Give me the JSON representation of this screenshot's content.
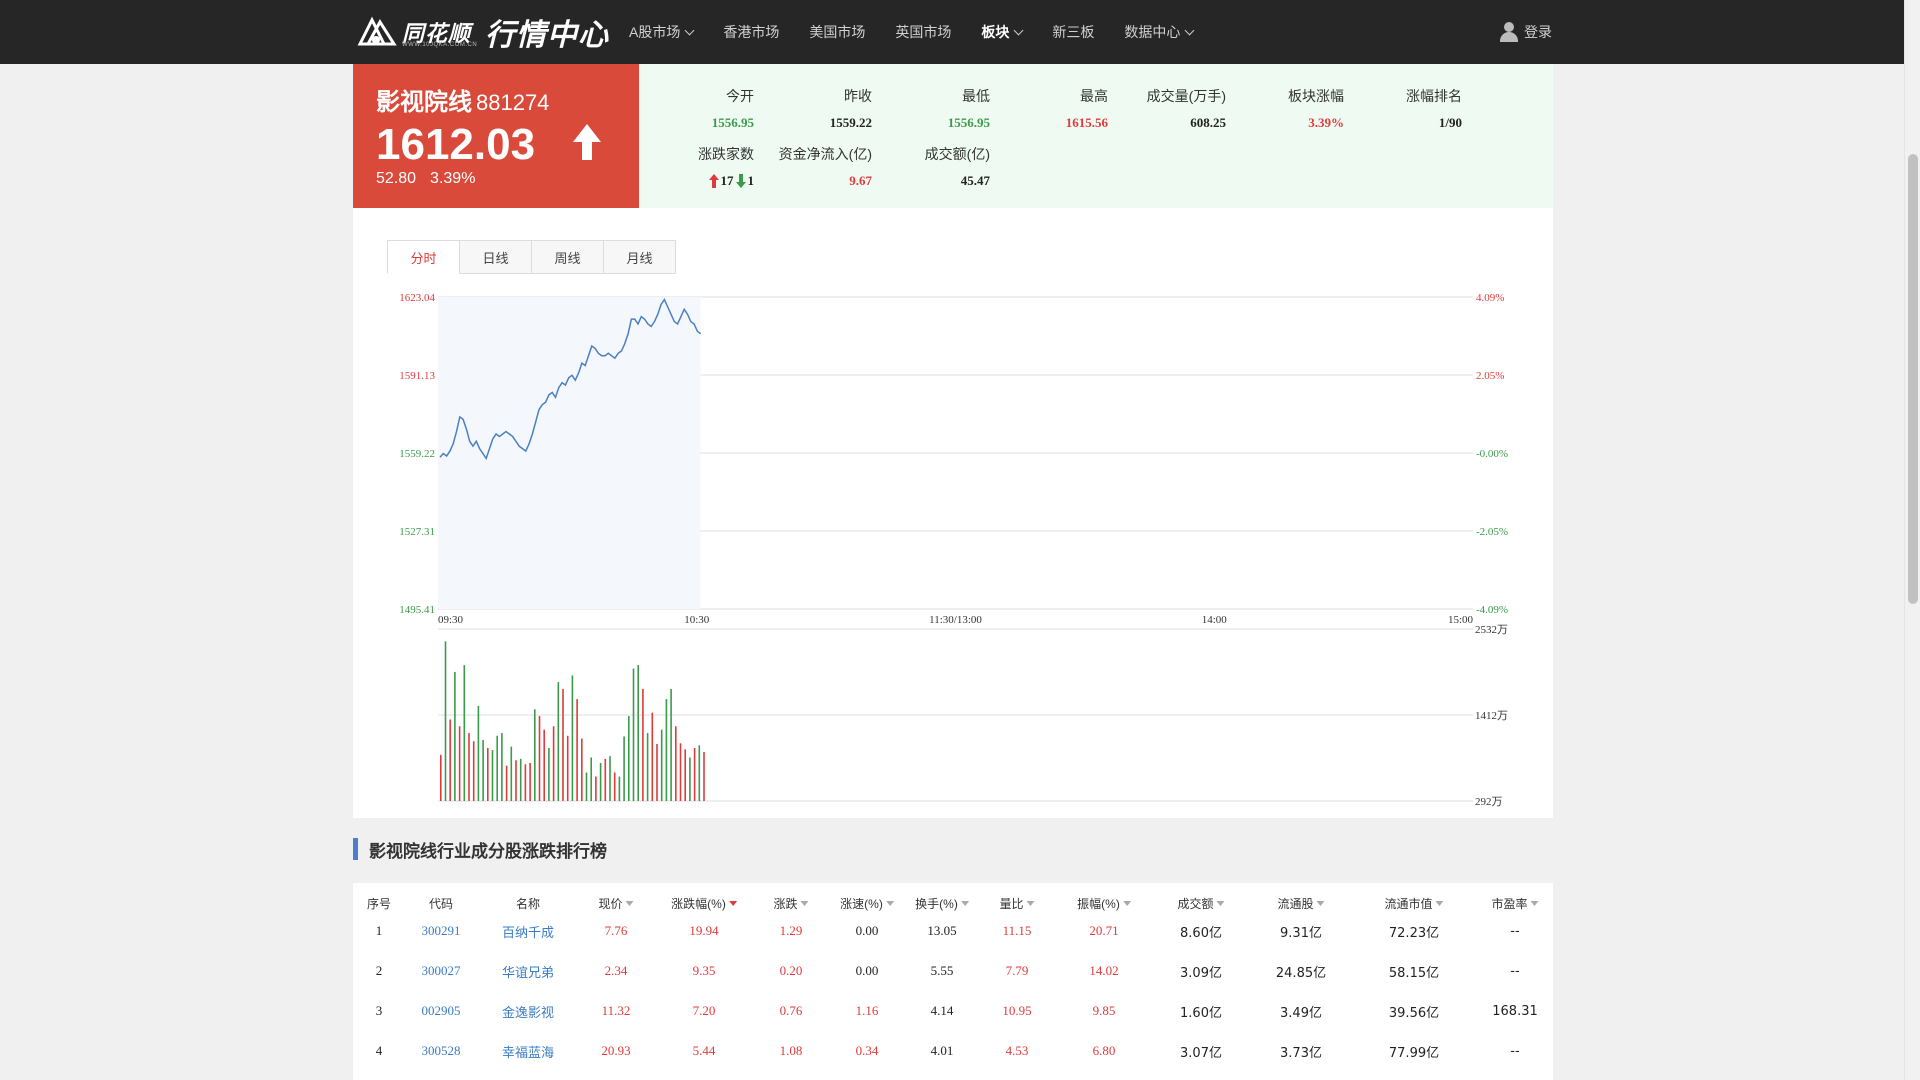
{
  "nav": {
    "logo_text": "同花顺",
    "logo_sub": "WWW.10JQKA.COM.CN",
    "logo_title": "行情中心",
    "items": [
      {
        "label": "A股市场",
        "dropdown": true,
        "active": false
      },
      {
        "label": "香港市场",
        "dropdown": false,
        "active": false
      },
      {
        "label": "美国市场",
        "dropdown": false,
        "active": false
      },
      {
        "label": "英国市场",
        "dropdown": false,
        "active": false
      },
      {
        "label": "板块",
        "dropdown": true,
        "active": true
      },
      {
        "label": "新三板",
        "dropdown": false,
        "active": false
      },
      {
        "label": "数据中心",
        "dropdown": true,
        "active": false
      }
    ],
    "login_label": "登录"
  },
  "quote": {
    "name": "影视院线",
    "code": "881274",
    "price": "1612.03",
    "change": "52.80",
    "change_pct": "3.39%",
    "stats": [
      {
        "label": "今开",
        "value": "1556.95",
        "color": "green"
      },
      {
        "label": "昨收",
        "value": "1559.22",
        "color": "dark"
      },
      {
        "label": "最低",
        "value": "1556.95",
        "color": "green"
      },
      {
        "label": "最高",
        "value": "1615.56",
        "color": "red"
      },
      {
        "label": "成交量(万手)",
        "value": "608.25",
        "color": "dark"
      },
      {
        "label": "板块涨幅",
        "value": "3.39%",
        "color": "red"
      },
      {
        "label": "涨幅排名",
        "value": "1/90",
        "color": "dark"
      },
      {
        "label": "涨跌家数",
        "up": "17",
        "down": "1"
      },
      {
        "label": "资金净流入(亿)",
        "value": "9.67",
        "color": "red"
      },
      {
        "label": "成交额(亿)",
        "value": "45.47",
        "color": "dark"
      }
    ]
  },
  "tabs": [
    "分时",
    "日线",
    "周线",
    "月线"
  ],
  "chart_data": {
    "type": "line",
    "y_left_ticks": [
      "1623.04",
      "1591.13",
      "1559.22",
      "1527.31",
      "1495.41"
    ],
    "y_right_ticks": [
      "4.09%",
      "2.05%",
      "-0.00%",
      "-2.05%",
      "-4.09%"
    ],
    "x_ticks": [
      "09:30",
      "10:30",
      "11:30/13:00",
      "14:00",
      "15:00"
    ],
    "ylim": [
      1495.41,
      1623.04
    ],
    "prev_close": 1559.22,
    "minutes_total": 240,
    "price": [
      1557.5,
      1559,
      1558,
      1560,
      1563,
      1568,
      1574,
      1573,
      1569,
      1564,
      1562,
      1564,
      1561,
      1559,
      1557,
      1561,
      1565,
      1567,
      1566,
      1567,
      1568,
      1567,
      1566,
      1564,
      1562,
      1561,
      1560,
      1563,
      1567,
      1572,
      1577,
      1579,
      1580,
      1583,
      1584,
      1582,
      1586,
      1588,
      1587,
      1590,
      1591,
      1589,
      1592,
      1596,
      1595,
      1599,
      1603,
      1602,
      1600,
      1599,
      1599,
      1600,
      1599,
      1598,
      1600,
      1601,
      1604,
      1608,
      1614,
      1614,
      1612,
      1615,
      1614,
      1612,
      1611,
      1613,
      1616,
      1620,
      1622,
      1619,
      1616,
      1613,
      1612,
      1615,
      1618,
      1616,
      1613,
      1612,
      1609,
      1608
    ],
    "volume_ticks": [
      "2532万",
      "1412万",
      "292万"
    ],
    "volume_max": 2532,
    "volume_min": 292,
    "volume": [
      {
        "v": 680,
        "c": "red"
      },
      {
        "v": 2350,
        "c": "green"
      },
      {
        "v": 1200,
        "c": "red"
      },
      {
        "v": 1900,
        "c": "green"
      },
      {
        "v": 1100,
        "c": "red"
      },
      {
        "v": 2000,
        "c": "green"
      },
      {
        "v": 1000,
        "c": "red"
      },
      {
        "v": 880,
        "c": "red"
      },
      {
        "v": 1400,
        "c": "green"
      },
      {
        "v": 900,
        "c": "green"
      },
      {
        "v": 780,
        "c": "red"
      },
      {
        "v": 750,
        "c": "green"
      },
      {
        "v": 960,
        "c": "green"
      },
      {
        "v": 1000,
        "c": "green"
      },
      {
        "v": 520,
        "c": "red"
      },
      {
        "v": 800,
        "c": "green"
      },
      {
        "v": 600,
        "c": "red"
      },
      {
        "v": 620,
        "c": "green"
      },
      {
        "v": 540,
        "c": "red"
      },
      {
        "v": 560,
        "c": "red"
      },
      {
        "v": 1350,
        "c": "green"
      },
      {
        "v": 1250,
        "c": "red"
      },
      {
        "v": 1050,
        "c": "red"
      },
      {
        "v": 780,
        "c": "green"
      },
      {
        "v": 1100,
        "c": "red"
      },
      {
        "v": 1750,
        "c": "green"
      },
      {
        "v": 1650,
        "c": "red"
      },
      {
        "v": 960,
        "c": "red"
      },
      {
        "v": 1850,
        "c": "green"
      },
      {
        "v": 1500,
        "c": "red"
      },
      {
        "v": 920,
        "c": "red"
      },
      {
        "v": 420,
        "c": "green"
      },
      {
        "v": 640,
        "c": "green"
      },
      {
        "v": 360,
        "c": "red"
      },
      {
        "v": 560,
        "c": "green"
      },
      {
        "v": 620,
        "c": "red"
      },
      {
        "v": 660,
        "c": "green"
      },
      {
        "v": 420,
        "c": "red"
      },
      {
        "v": 360,
        "c": "green"
      },
      {
        "v": 950,
        "c": "green"
      },
      {
        "v": 1250,
        "c": "green"
      },
      {
        "v": 1950,
        "c": "green"
      },
      {
        "v": 2000,
        "c": "green"
      },
      {
        "v": 1650,
        "c": "red"
      },
      {
        "v": 1000,
        "c": "green"
      },
      {
        "v": 1300,
        "c": "red"
      },
      {
        "v": 840,
        "c": "red"
      },
      {
        "v": 1050,
        "c": "green"
      },
      {
        "v": 1500,
        "c": "green"
      },
      {
        "v": 1650,
        "c": "green"
      },
      {
        "v": 1100,
        "c": "red"
      },
      {
        "v": 850,
        "c": "red"
      },
      {
        "v": 760,
        "c": "red"
      },
      {
        "v": 640,
        "c": "green"
      },
      {
        "v": 780,
        "c": "red"
      },
      {
        "v": 820,
        "c": "green"
      },
      {
        "v": 720,
        "c": "red"
      }
    ]
  },
  "ranking": {
    "title": "影视院线行业成分股涨跌排行榜",
    "columns": [
      {
        "label": "序号",
        "sort": false
      },
      {
        "label": "代码",
        "sort": false
      },
      {
        "label": "名称",
        "sort": false
      },
      {
        "label": "现价",
        "sort": true
      },
      {
        "label": "涨跌幅(%)",
        "sort": true,
        "active": true
      },
      {
        "label": "涨跌",
        "sort": true
      },
      {
        "label": "涨速(%)",
        "sort": true
      },
      {
        "label": "换手(%)",
        "sort": true
      },
      {
        "label": "量比",
        "sort": true
      },
      {
        "label": "振幅(%)",
        "sort": true
      },
      {
        "label": "成交额",
        "sort": true
      },
      {
        "label": "流通股",
        "sort": true
      },
      {
        "label": "流通市值",
        "sort": true
      },
      {
        "label": "市盈率",
        "sort": true
      }
    ],
    "rows": [
      [
        "1",
        "300291",
        "百纳千成",
        "7.76",
        "19.94",
        "1.29",
        "0.00",
        "13.05",
        "11.15",
        "20.71",
        "8.60亿",
        "9.31亿",
        "72.23亿",
        "--"
      ],
      [
        "2",
        "300027",
        "华谊兄弟",
        "2.34",
        "9.35",
        "0.20",
        "0.00",
        "5.55",
        "7.79",
        "14.02",
        "3.09亿",
        "24.85亿",
        "58.15亿",
        "--"
      ],
      [
        "3",
        "002905",
        "金逸影视",
        "11.32",
        "7.20",
        "0.76",
        "1.16",
        "4.14",
        "10.95",
        "9.85",
        "1.60亿",
        "3.49亿",
        "39.56亿",
        "168.31"
      ],
      [
        "4",
        "300528",
        "幸福蓝海",
        "20.93",
        "5.44",
        "1.08",
        "0.34",
        "4.01",
        "4.53",
        "6.80",
        "3.07亿",
        "3.73亿",
        "77.99亿",
        "--"
      ]
    ]
  }
}
